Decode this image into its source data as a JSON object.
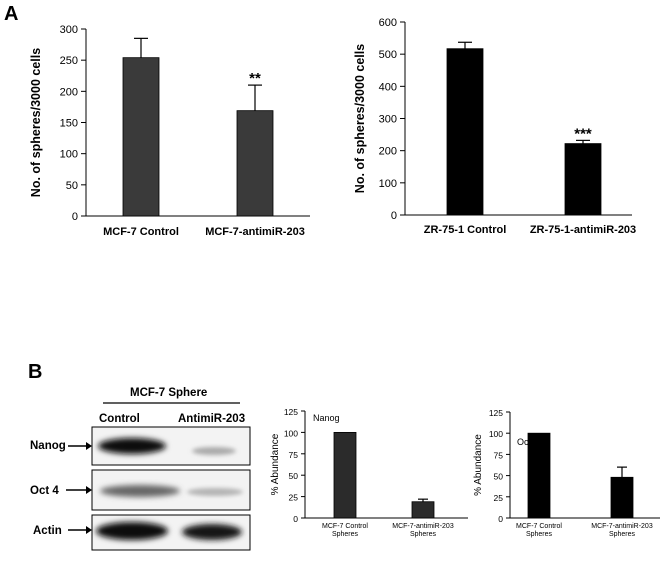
{
  "panel_labels": {
    "a": "A",
    "b": "B"
  },
  "chart_data": [
    {
      "type": "bar",
      "categories": [
        "MCF-7 Control",
        "MCF-7-antimiR-203"
      ],
      "values": [
        254,
        169
      ],
      "errors": [
        31,
        41
      ],
      "significance": [
        "",
        "**"
      ],
      "ylabel": "No. of spheres/3000 cells",
      "ylim": [
        0,
        300
      ],
      "yticks": [
        0,
        50,
        100,
        150,
        200,
        250,
        300
      ],
      "color": "#3a3a3a"
    },
    {
      "type": "bar",
      "categories": [
        "ZR-75-1 Control",
        "ZR-75-1-antimiR-203"
      ],
      "values": [
        517,
        222
      ],
      "errors": [
        20,
        10
      ],
      "significance": [
        "",
        "***"
      ],
      "ylabel": "No. of spheres/3000 cells",
      "ylim": [
        0,
        600
      ],
      "yticks": [
        0,
        100,
        200,
        300,
        400,
        500,
        600
      ],
      "color": "#000000"
    },
    {
      "type": "bar",
      "title": "Nanog",
      "categories": [
        "MCF-7 Control Spheres",
        "MCF-7-antimiR-203 Spheres"
      ],
      "values": [
        100,
        19
      ],
      "errors": [
        0,
        3
      ],
      "ylabel": "% Abundance",
      "ylim": [
        0,
        125
      ],
      "yticks": [
        0,
        25,
        50,
        75,
        100,
        125
      ],
      "color": "#2b2b2b"
    },
    {
      "type": "bar",
      "title": "Oct 4",
      "categories": [
        "MCF-7  Control Spheres",
        "MCF-7-antimiR-203 Spheres"
      ],
      "values": [
        100,
        48
      ],
      "errors": [
        0,
        12
      ],
      "ylabel": "% Abundance",
      "ylim": [
        0,
        125
      ],
      "yticks": [
        0,
        25,
        50,
        75,
        100,
        125
      ],
      "color": "#000000"
    }
  ],
  "western_blot": {
    "title": "MCF-7 Sphere",
    "columns": [
      "Control",
      "AntimiR-203"
    ],
    "rows": [
      "Nanog",
      "Oct 4",
      "Actin"
    ]
  }
}
